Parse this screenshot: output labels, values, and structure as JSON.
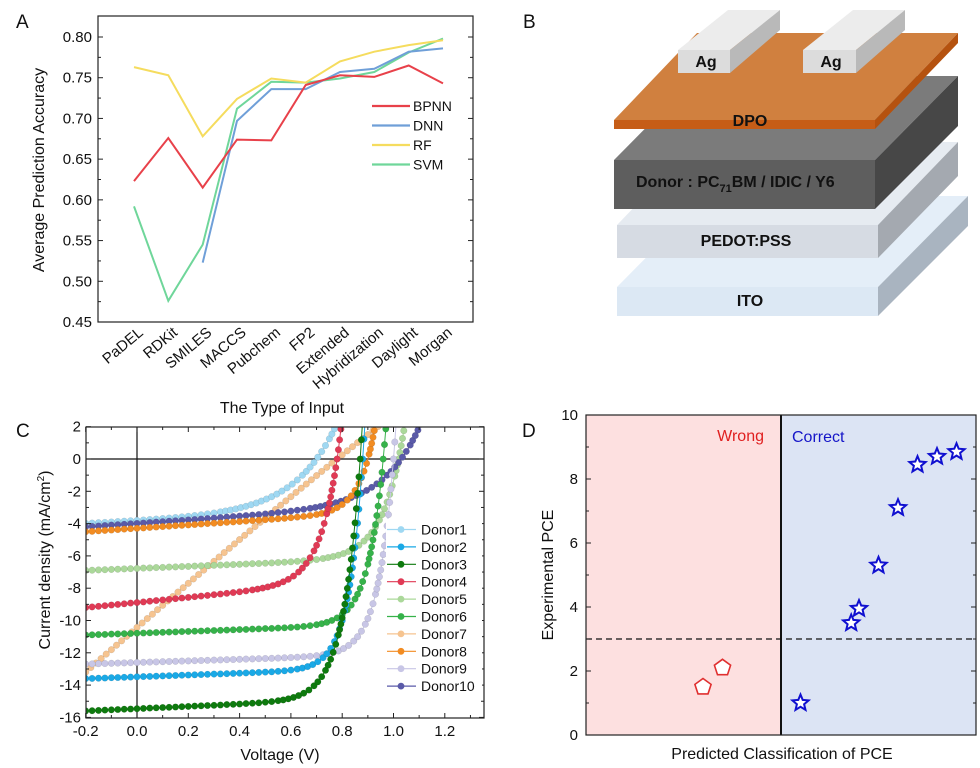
{
  "chart_data": [
    {
      "panel": "A",
      "type": "line",
      "title": "",
      "xlabel": "The Type of Input",
      "ylabel": "Average Prediction Accuracy",
      "ylim": [
        0.45,
        0.82
      ],
      "yticks": [
        "0.45",
        "0.50",
        "0.55",
        "0.60",
        "0.65",
        "0.70",
        "0.75",
        "0.80"
      ],
      "categories": [
        "PaDEL",
        "RDKit",
        "SMILES",
        "MACCS",
        "Pubchem",
        "FP2",
        "Extended",
        "Hybridization",
        "Daylight",
        "Morgan"
      ],
      "legend_position": "right",
      "series": [
        {
          "name": "BPNN",
          "color": "#e8414a",
          "values": [
            0.623,
            0.676,
            0.615,
            0.674,
            0.673,
            0.741,
            0.753,
            0.751,
            0.765,
            0.743
          ]
        },
        {
          "name": "DNN",
          "color": "#6f9fd8",
          "values": [
            null,
            null,
            0.523,
            0.697,
            0.736,
            0.736,
            0.757,
            0.761,
            0.782,
            0.786
          ]
        },
        {
          "name": "RF",
          "color": "#f5dc5e",
          "values": [
            0.763,
            0.753,
            0.678,
            0.724,
            0.749,
            0.744,
            0.77,
            0.782,
            0.79,
            0.796
          ]
        },
        {
          "name": "SVM",
          "color": "#6fd69a",
          "values": [
            0.592,
            0.476,
            0.545,
            0.712,
            0.745,
            0.744,
            0.749,
            0.757,
            0.781,
            0.798
          ]
        }
      ]
    },
    {
      "panel": "B",
      "type": "diagram",
      "layers": [
        {
          "label": "Ag",
          "role": "electrode"
        },
        {
          "label": "DPO",
          "role": "layer"
        },
        {
          "label_main": "Donor : PC",
          "label_sub": "71",
          "label_rest": "BM / IDIC / Y6",
          "role": "active-layer"
        },
        {
          "label": "PEDOT:PSS",
          "role": "layer"
        },
        {
          "label": "ITO",
          "role": "substrate"
        }
      ],
      "electrode_labels": [
        "Ag",
        "Ag"
      ],
      "colors": {
        "ag": "#d8d8d8",
        "dpo": "#d07a3e",
        "active": "#5e5e5e",
        "pedot": "#d6dbe3",
        "ito": "#dce8f4"
      }
    },
    {
      "panel": "C",
      "type": "line",
      "xlabel": "Voltage (V)",
      "ylabel_main": "Current density (mA/cm",
      "ylabel_sup": "2",
      "ylabel_end": ")",
      "xlim": [
        -0.2,
        1.35
      ],
      "ylim": [
        -16,
        2
      ],
      "xticks": [
        "-0.2",
        "0.0",
        "0.2",
        "0.4",
        "0.6",
        "0.8",
        "1.0",
        "1.2"
      ],
      "yticks": [
        "-16",
        "-14",
        "-12",
        "-10",
        "-8",
        "-6",
        "-4",
        "-2",
        "0",
        "2"
      ],
      "legend_position": "bottom-right",
      "series": [
        {
          "name": "Donor1",
          "color": "#9fd8f2",
          "jsc": -4.0,
          "voc": 0.7,
          "slope": 2.2,
          "shape": 0.16
        },
        {
          "name": "Donor2",
          "color": "#1aa9e6",
          "jsc": -13.6,
          "voc": 0.88,
          "slope": 1.6,
          "shape": 0.055
        },
        {
          "name": "Donor3",
          "color": "#0e7a0e",
          "jsc": -15.6,
          "voc": 0.87,
          "slope": 2.0,
          "shape": 0.065
        },
        {
          "name": "Donor4",
          "color": "#e03a55",
          "jsc": -9.2,
          "voc": 0.78,
          "slope": 4.5,
          "shape": 0.07
        },
        {
          "name": "Donor5",
          "color": "#abd89a",
          "jsc": -6.9,
          "voc": 1.02,
          "slope": 1.8,
          "shape": 0.08
        },
        {
          "name": "Donor6",
          "color": "#36b24a",
          "jsc": -10.9,
          "voc": 0.96,
          "slope": 1.6,
          "shape": 0.06
        },
        {
          "name": "Donor7",
          "color": "#f6c490",
          "jsc": -13.1,
          "voc": 0.78,
          "slope": 14.0,
          "shape": 0.5
        },
        {
          "name": "Donor8",
          "color": "#f28c22",
          "jsc": -4.5,
          "voc": 0.9,
          "slope": 3.0,
          "shape": 0.06
        },
        {
          "name": "Donor9",
          "color": "#c8c6e6",
          "jsc": -12.7,
          "voc": 1.0,
          "slope": 1.4,
          "shape": 0.06
        },
        {
          "name": "Donor10",
          "color": "#5a5aa8",
          "jsc": -4.2,
          "voc": 1.03,
          "slope": 3.0,
          "shape": 0.14
        }
      ]
    },
    {
      "panel": "D",
      "type": "scatter",
      "xlabel": "Predicted Classification of PCE",
      "ylabel": "Experimental PCE",
      "ylim": [
        0,
        10
      ],
      "yticks": [
        "0",
        "2",
        "4",
        "6",
        "8",
        "10"
      ],
      "threshold": 3,
      "regions": [
        {
          "label": "Wrong",
          "color": "#fde0e0",
          "text_color": "#e02020"
        },
        {
          "label": "Correct",
          "color": "#dce4f4",
          "text_color": "#1515c8"
        }
      ],
      "series": [
        {
          "name": "Wrong",
          "marker": "pentagon",
          "color": "#e03030",
          "points": [
            {
              "x": 0.6,
              "y": 1.5
            },
            {
              "x": 0.7,
              "y": 2.1
            }
          ]
        },
        {
          "name": "Correct",
          "marker": "star",
          "color": "#1010d0",
          "points": [
            {
              "x": 1.1,
              "y": 1.0
            },
            {
              "x": 1.36,
              "y": 3.5
            },
            {
              "x": 1.4,
              "y": 3.95
            },
            {
              "x": 1.5,
              "y": 5.3
            },
            {
              "x": 1.6,
              "y": 7.1
            },
            {
              "x": 1.7,
              "y": 8.45
            },
            {
              "x": 1.8,
              "y": 8.7
            },
            {
              "x": 1.9,
              "y": 8.85
            }
          ]
        }
      ],
      "xlim": [
        0,
        2
      ]
    }
  ],
  "labels": {
    "a": "A",
    "b": "B",
    "c": "C",
    "d": "D"
  }
}
